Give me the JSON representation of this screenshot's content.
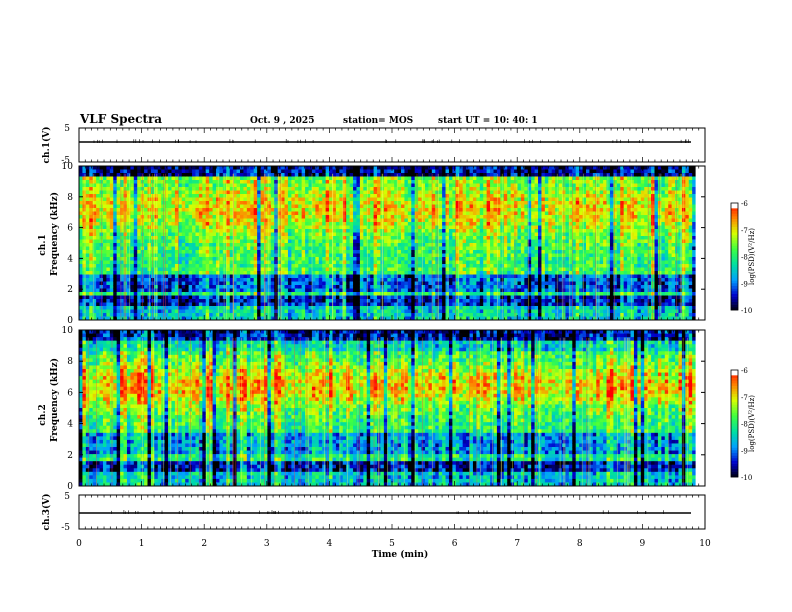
{
  "header": {
    "title": "VLF Spectra",
    "date": "Oct. 9 , 2025",
    "station": "station= MOS",
    "start": "start UT = 10: 40: 1"
  },
  "chart_data": [
    {
      "type": "line",
      "name": "ch1-waveform",
      "ylabel": "ch.1(V)",
      "ylim": [
        -5,
        5
      ],
      "yticks": [
        "5",
        "-5"
      ],
      "note": "near-constant trace slightly above zero"
    },
    {
      "type": "heatmap",
      "name": "ch1-spectrogram",
      "ylabel": "ch.1\nFrequency (kHz)",
      "ylim": [
        0,
        10
      ],
      "yticks": [
        "10",
        "8",
        "6",
        "4",
        "2",
        "0"
      ],
      "colorbar": {
        "label": "log(PSD)(V²/Hz)",
        "range": [
          -10,
          -6
        ],
        "ticks": [
          "-6",
          "-7",
          "-8",
          "-9",
          "-10"
        ]
      }
    },
    {
      "type": "heatmap",
      "name": "ch2-spectrogram",
      "ylabel": "ch.2\nFrequency (kHz)",
      "ylim": [
        0,
        10
      ],
      "yticks": [
        "10",
        "8",
        "6",
        "4",
        "2",
        "0"
      ],
      "colorbar": {
        "label": "log(PSD)(V²/Hz)",
        "range": [
          -10,
          -6
        ],
        "ticks": [
          "-6",
          "-7",
          "-8",
          "-9",
          "-10"
        ]
      }
    },
    {
      "type": "line",
      "name": "ch3-waveform",
      "ylabel": "ch.3(V)",
      "ylim": [
        -5,
        5
      ],
      "yticks": [
        "5",
        "-5"
      ],
      "note": "near-constant trace slightly below zero"
    }
  ],
  "xaxis": {
    "label": "Time (min)",
    "range": [
      0,
      10
    ],
    "ticks": [
      "0",
      "1",
      "2",
      "3",
      "4",
      "5",
      "6",
      "7",
      "8",
      "9",
      "10"
    ],
    "data_end": 9.85
  },
  "colors": {
    "scale": [
      "#000000",
      "#0000cc",
      "#00a0ff",
      "#00e0a0",
      "#40ff40",
      "#d8ff00",
      "#ff8000",
      "#ff0000",
      "#ffffff"
    ]
  }
}
